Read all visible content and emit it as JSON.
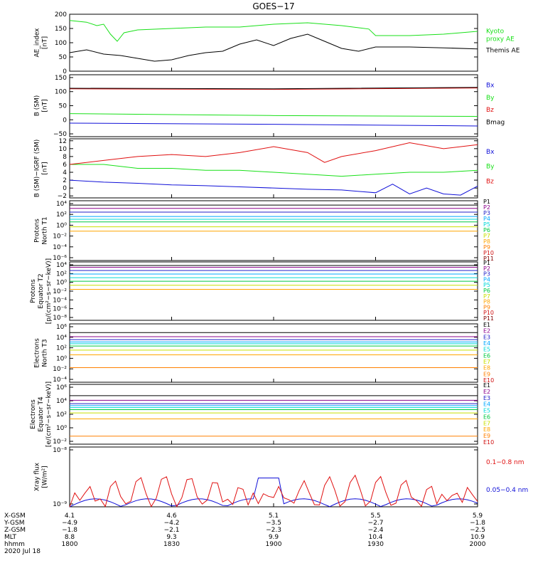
{
  "title": "GOES−17",
  "colors": {
    "black": "#000000",
    "red": "#e01010",
    "green": "#18e018",
    "blue": "#1010d8"
  },
  "chart_data": [
    {
      "id": "ae",
      "type": "line",
      "ylabel": "AE_index\n[nT]",
      "ylim": [
        0,
        200
      ],
      "ticks": [
        "0",
        "50",
        "100",
        "150",
        "200"
      ],
      "series": [
        {
          "name": "Kyoto\nproxy AE",
          "color": "#18e018",
          "x": [
            0,
            5,
            8,
            10,
            12,
            14,
            16,
            18,
            20,
            30,
            40,
            50,
            60,
            70,
            80,
            88,
            90,
            100,
            110,
            120
          ],
          "y": [
            178,
            172,
            160,
            165,
            130,
            105,
            135,
            140,
            145,
            150,
            155,
            155,
            165,
            170,
            160,
            148,
            125,
            125,
            130,
            140
          ]
        },
        {
          "name": "Themis AE",
          "color": "#000000",
          "x": [
            0,
            5,
            10,
            15,
            20,
            25,
            30,
            35,
            40,
            45,
            50,
            55,
            60,
            65,
            70,
            75,
            80,
            85,
            90,
            100,
            110,
            120
          ],
          "y": [
            65,
            75,
            60,
            55,
            45,
            35,
            40,
            55,
            65,
            70,
            95,
            110,
            90,
            115,
            130,
            105,
            80,
            70,
            85,
            85,
            82,
            78
          ]
        }
      ]
    },
    {
      "id": "bsm",
      "type": "line",
      "ylabel": "B (SM)\n[nT]",
      "ylim": [
        -60,
        160
      ],
      "ticks": [
        "−50",
        "0",
        "50",
        "100",
        "150"
      ],
      "series": [
        {
          "name": "Bx",
          "color": "#1010d8",
          "x": [
            0,
            60,
            120
          ],
          "y": [
            -12,
            -16,
            -22
          ]
        },
        {
          "name": "By",
          "color": "#18e018",
          "x": [
            0,
            60,
            120
          ],
          "y": [
            22,
            15,
            12
          ]
        },
        {
          "name": "Bz",
          "color": "#e01010",
          "x": [
            0,
            60,
            120
          ],
          "y": [
            110,
            108,
            113
          ]
        },
        {
          "name": "Bmag",
          "color": "#000000",
          "x": [
            0,
            60,
            120
          ],
          "y": [
            112,
            110,
            115
          ]
        }
      ]
    },
    {
      "id": "digrf",
      "type": "line",
      "ylabel": "B (SM)−IGRF (SM)\n[nT]",
      "ylim": [
        -2.5,
        12.5
      ],
      "ticks": [
        "−2",
        "0",
        "2",
        "4",
        "6",
        "8",
        "10",
        "12"
      ],
      "series": [
        {
          "name": "Bx",
          "color": "#1010d8",
          "x": [
            0,
            10,
            20,
            30,
            40,
            50,
            60,
            70,
            80,
            90,
            95,
            100,
            105,
            110,
            115,
            120
          ],
          "y": [
            2,
            1.5,
            1.2,
            0.8,
            0.6,
            0.3,
            0.0,
            -0.3,
            -0.5,
            -1.2,
            1.0,
            -1.5,
            0.0,
            -1.5,
            -1.8,
            0.5
          ]
        },
        {
          "name": "By",
          "color": "#18e018",
          "x": [
            0,
            10,
            20,
            30,
            40,
            50,
            60,
            70,
            80,
            90,
            100,
            110,
            120
          ],
          "y": [
            6,
            6,
            5,
            5,
            4.5,
            4.5,
            4,
            3.5,
            3,
            3.5,
            4,
            4,
            4.5
          ]
        },
        {
          "name": "Bz",
          "color": "#e01010",
          "x": [
            0,
            10,
            20,
            30,
            40,
            50,
            60,
            70,
            75,
            80,
            90,
            100,
            110,
            120
          ],
          "y": [
            6,
            7,
            8,
            8.5,
            8,
            9,
            10.5,
            9,
            6.5,
            8,
            9.5,
            11.5,
            10,
            11
          ]
        }
      ]
    },
    {
      "id": "pnorth",
      "type": "line",
      "logscale": true,
      "ylabel": "Protons\nNorth T1",
      "ylim": [
        -7,
        4
      ],
      "ticks": [
        "10⁴",
        "10²",
        "10⁰",
        "10⁻²",
        "10⁻⁴",
        "10⁻⁶"
      ],
      "channels": [
        "P1",
        "P2",
        "P3",
        "P4",
        "P5",
        "P6",
        "P7",
        "P8",
        "P9",
        "P10",
        "P11"
      ],
      "channel_levels": [
        3.2,
        2.6,
        1.9,
        1.1,
        0.6,
        0.1,
        -0.8,
        -1.6,
        null,
        null,
        null
      ]
    },
    {
      "id": "pequator",
      "type": "line",
      "logscale": true,
      "ylabel": "Protons\nEquator T2\n[p/(cm²−s−sr−keV)]",
      "ylim": [
        -9,
        4
      ],
      "ticks": [
        "10⁴",
        "10²",
        "10⁰",
        "10⁻²",
        "10⁻⁴",
        "10⁻⁶",
        "10⁻⁸"
      ],
      "channels": [
        "P1",
        "P2",
        "P3",
        "P4",
        "P5",
        "P6",
        "P7",
        "P8",
        "P9",
        "P10",
        "P11"
      ],
      "channel_levels": [
        3.2,
        2.8,
        2.1,
        1.3,
        0.5,
        -0.3,
        -1.2,
        -2.1,
        null,
        null,
        null
      ]
    },
    {
      "id": "enorth",
      "type": "line",
      "logscale": true,
      "ylabel": "Electrons\nNorth T3",
      "ylim": [
        -4,
        6
      ],
      "ticks": [
        "10⁶",
        "10⁴",
        "10²",
        "10⁰",
        "10⁻²",
        "10⁻⁴"
      ],
      "channels": [
        "E1",
        "E2",
        "E3",
        "E4",
        "E5",
        "E6",
        "E7",
        "E8",
        "E9",
        "E10"
      ],
      "channel_levels": [
        4.5,
        3.8,
        3.3,
        2.9,
        2.6,
        2.2,
        1.5,
        0.7,
        -1.5,
        null
      ]
    },
    {
      "id": "eequator",
      "type": "line",
      "logscale": true,
      "ylabel": "Electrons\nEquator T4\n[e/(cm²−s−sr−keV)]",
      "ylim": [
        -3,
        6
      ],
      "ticks": [
        "10⁶",
        "10⁴",
        "10²",
        "10⁰",
        "10⁻²"
      ],
      "channels": [
        "E1",
        "E2",
        "E3",
        "E4",
        "E5",
        "E6",
        "E7",
        "E8",
        "E9",
        "E10"
      ],
      "channel_levels": [
        4.3,
        3.6,
        3.1,
        2.8,
        2.5,
        2.2,
        1.7,
        0.8,
        -1.8,
        null
      ]
    },
    {
      "id": "xray",
      "type": "line",
      "logscale": true,
      "ylabel": "Xray flux\n[W/m²]",
      "ylim": [
        -9,
        -8
      ],
      "ticks": [
        "10⁻⁸",
        "10⁻⁹"
      ],
      "series": [
        {
          "name": "0.1−0.8 nm",
          "color": "#e01010"
        },
        {
          "name": "0.05−0.4 nm",
          "color": "#1010d8"
        }
      ]
    }
  ],
  "channel_colors": [
    "#000000",
    "#8b008b",
    "#2020c8",
    "#00a8ff",
    "#00d8d8",
    "#00c840",
    "#c8e000",
    "#ffa500",
    "#ff8000",
    "#d01010",
    "#800000"
  ],
  "x_axis": {
    "rows": [
      {
        "label": "X-GSM",
        "values": [
          "4.1",
          "4.6",
          "5.1",
          "5.5",
          "5.9"
        ]
      },
      {
        "label": "Y-GSM",
        "values": [
          "−4.9",
          "−4.2",
          "−3.5",
          "−2.7",
          "−1.8"
        ]
      },
      {
        "label": "Z-GSM",
        "values": [
          "−1.8",
          "−2.1",
          "−2.3",
          "−2.4",
          "−2.5"
        ]
      },
      {
        "label": "MLT",
        "values": [
          "8.8",
          "9.3",
          "9.9",
          "10.4",
          "10.9"
        ]
      },
      {
        "label": "hhmm",
        "values": [
          "1800",
          "1830",
          "1900",
          "1930",
          "2000"
        ]
      }
    ],
    "date": "2020 Jul 18",
    "xlim": [
      0,
      120
    ]
  }
}
